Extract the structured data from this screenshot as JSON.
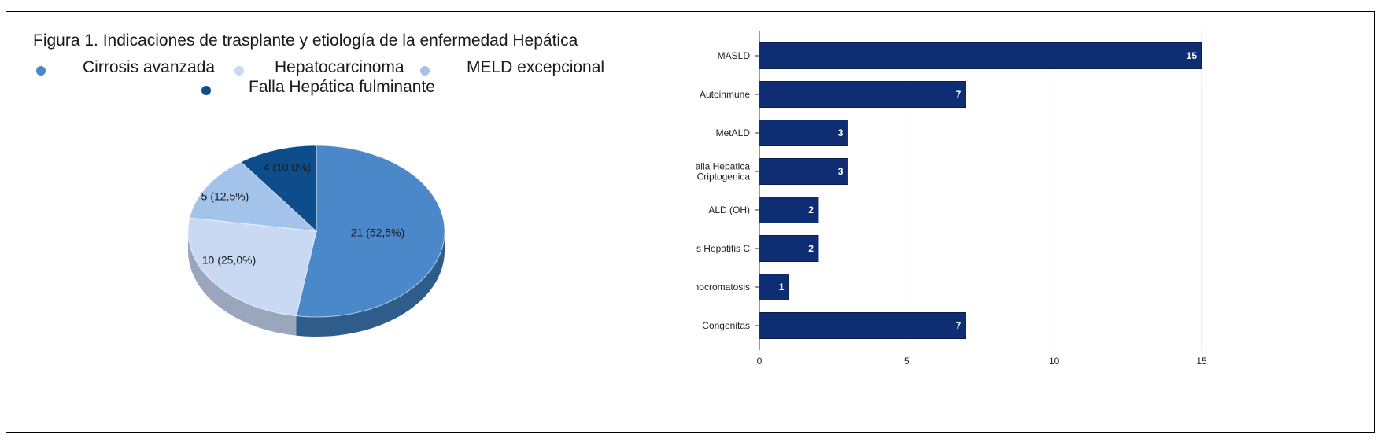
{
  "pie": {
    "title": "Figura 1. Indicaciones de trasplante y etiología de la enfermedad Hepática",
    "legend": [
      {
        "label": "Cirrosis avanzada",
        "color": "#4a88c9"
      },
      {
        "label": "Hepatocarcinoma",
        "color": "#c9d9f4"
      },
      {
        "label": "MELD excepcional",
        "color": "#a4c3ea"
      },
      {
        "label": "Falla Hepática fulminante",
        "color": "#0d4d8c"
      }
    ]
  },
  "chart_data": [
    {
      "type": "pie",
      "title": "Figura 1. Indicaciones de trasplante y etiología de la enfermedad Hepática",
      "labels": [
        "Cirrosis avanzada",
        "Hepatocarcinoma",
        "MELD excepcional",
        "Falla Hepática fulminante"
      ],
      "values": [
        21,
        10,
        5,
        4
      ],
      "data_labels": [
        "21 (52,5%)",
        "10 (25,0%)",
        "5 (12,5%)",
        "4 (10,0%)"
      ],
      "colors": [
        "#4a88c9",
        "#c9d9f4",
        "#a4c3ea",
        "#0d4d8c"
      ],
      "side_colors": [
        "#2e5d8c",
        "#9aa6bb",
        "#8aa3c4",
        "#0a3a6b"
      ],
      "legend_position": "top"
    },
    {
      "type": "bar",
      "orientation": "horizontal",
      "categories": [
        "MASLD",
        "Autoinmune",
        "MetALD",
        "Falla Hepatica Criptogenica",
        "ALD (OH)",
        "Virus Hepatitis C",
        "Hemocromatosis",
        "Congenitas"
      ],
      "category_lines": [
        [
          "MASLD"
        ],
        [
          "Autoinmune"
        ],
        [
          "MetALD"
        ],
        [
          "Falla Hepatica",
          "Criptogenica"
        ],
        [
          "ALD (OH)"
        ],
        [
          "Virus Hepatitis C"
        ],
        [
          "Hemocromatosis"
        ],
        [
          "Congenitas"
        ]
      ],
      "values": [
        15,
        7,
        3,
        3,
        2,
        2,
        1,
        7
      ],
      "xlim": [
        0,
        15
      ],
      "xticks": [
        "0",
        "5",
        "10",
        "15"
      ],
      "grid": true,
      "bar_color": "#0f2d72",
      "label_color": "#ffffff"
    }
  ]
}
